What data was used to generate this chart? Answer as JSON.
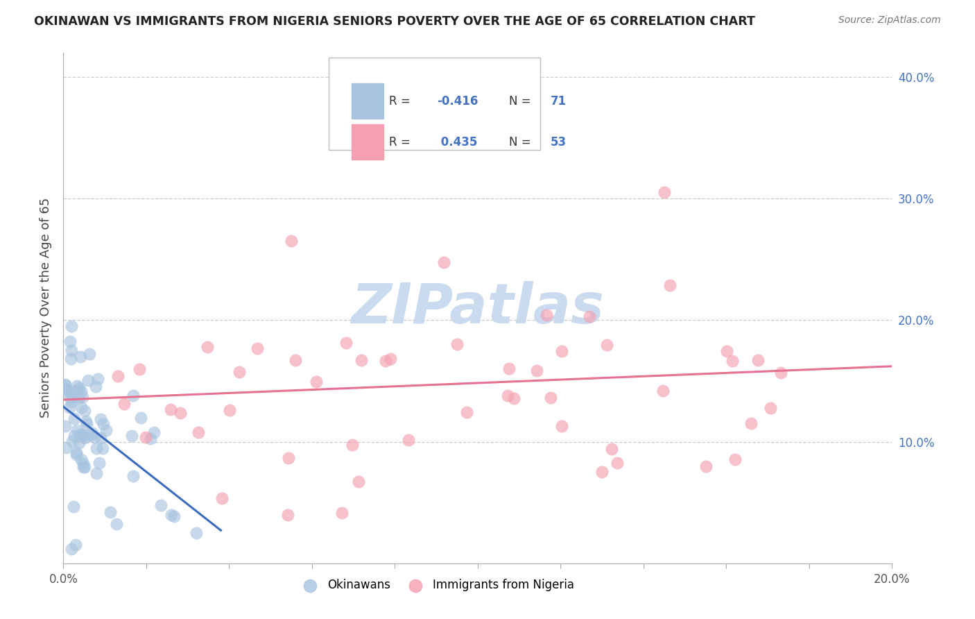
{
  "title": "OKINAWAN VS IMMIGRANTS FROM NIGERIA SENIORS POVERTY OVER THE AGE OF 65 CORRELATION CHART",
  "source": "Source: ZipAtlas.com",
  "ylabel": "Seniors Poverty Over the Age of 65",
  "xlim": [
    0.0,
    0.2
  ],
  "ylim": [
    0.0,
    0.42
  ],
  "okinawan_color": "#a8c4e0",
  "nigeria_color": "#f4a0b0",
  "okinawan_line_color": "#3a6bbf",
  "nigeria_line_color": "#e87090",
  "okinawan_line_dash": [
    6,
    4
  ],
  "watermark_text": "ZIPatlas",
  "watermark_color": "#c5d8ee",
  "background_color": "#ffffff",
  "grid_color": "#cccccc",
  "title_color": "#222222",
  "right_axis_color": "#4472c4",
  "legend_color_R": "#333333",
  "legend_color_N": "#4472c4",
  "legend_color_val": "#4472c4",
  "okinawan_R_text": "-0.416",
  "okinawan_N_text": "71",
  "nigeria_R_text": "0.435",
  "nigeria_N_text": "53",
  "legend_patch_ok": "#a8c4e0",
  "legend_patch_ng": "#f4a0b0"
}
